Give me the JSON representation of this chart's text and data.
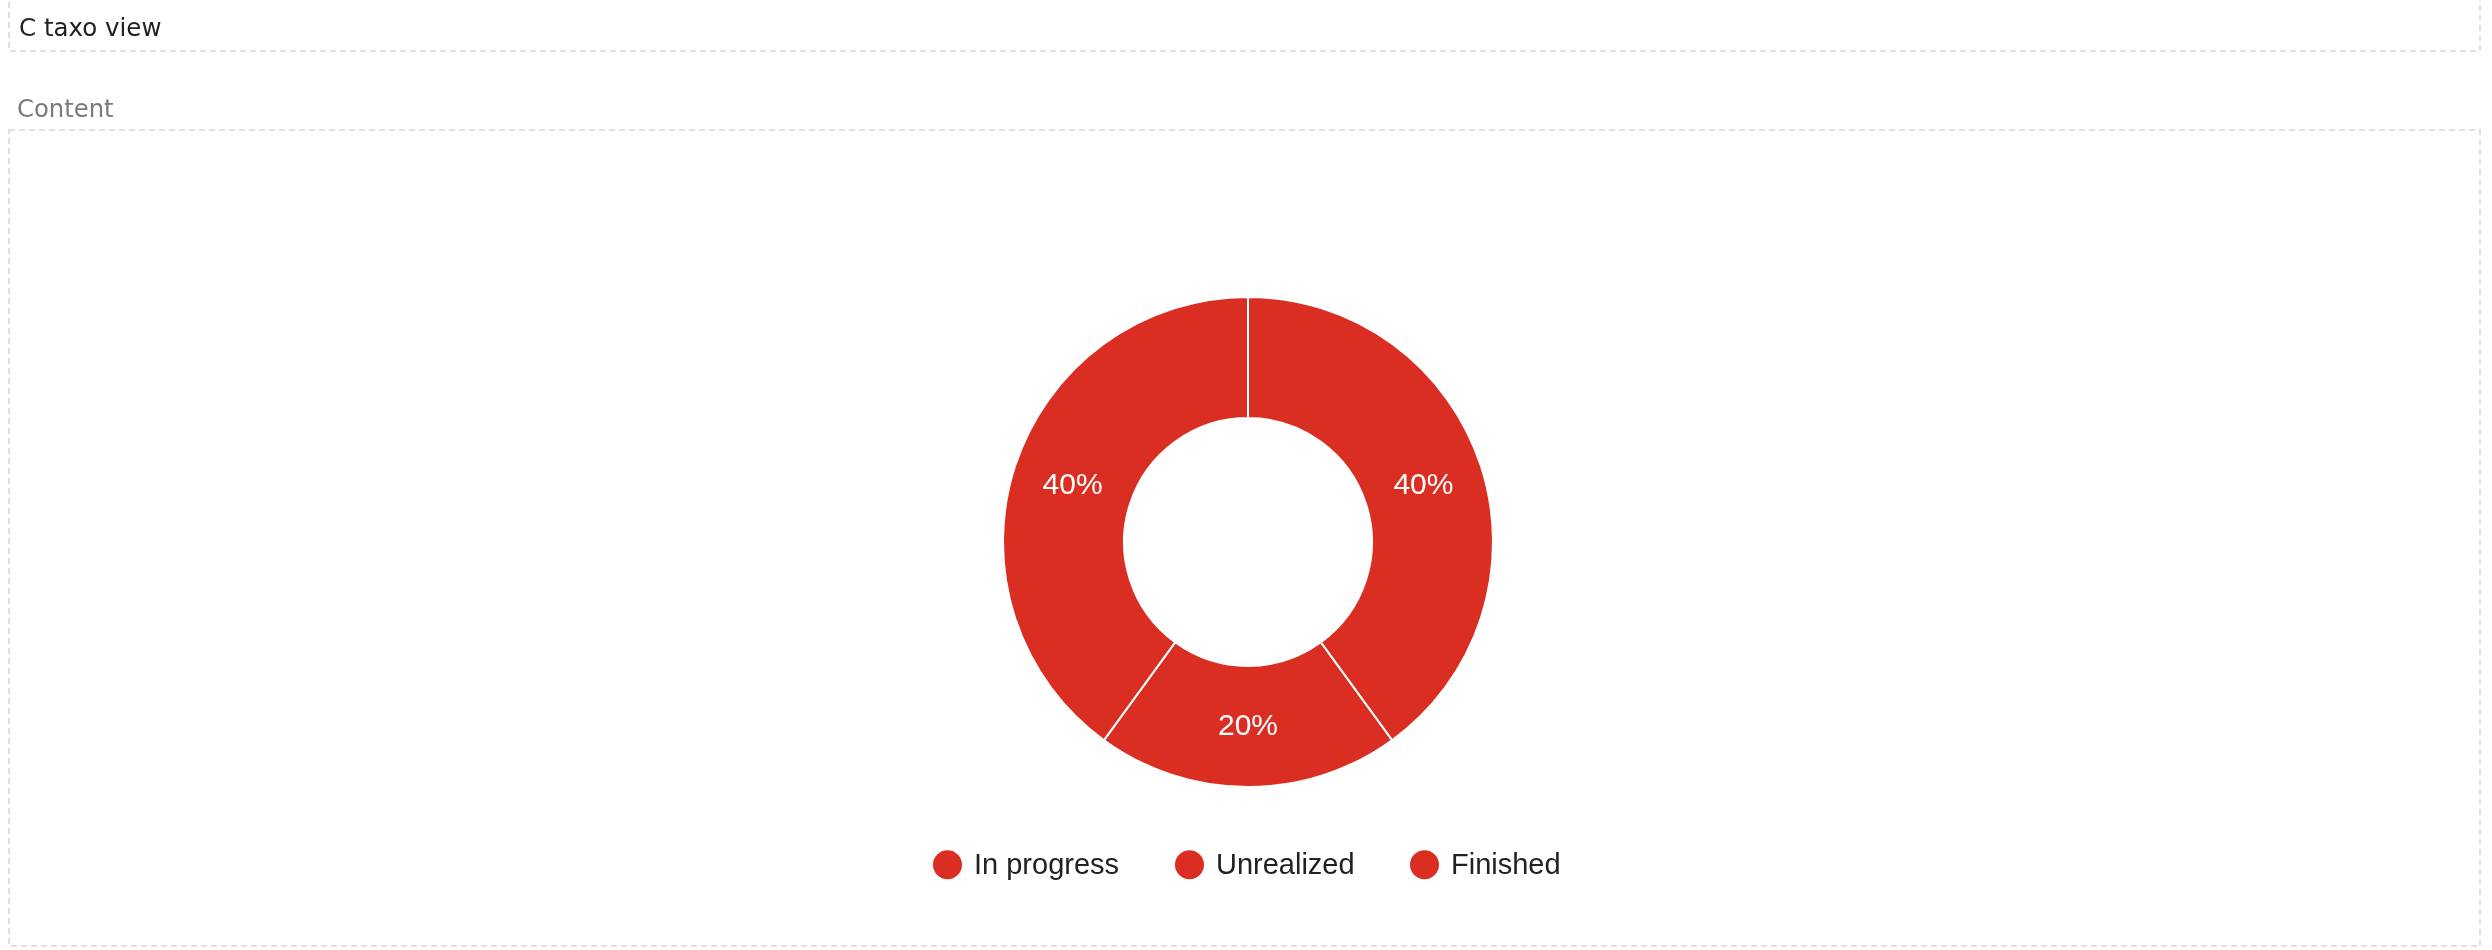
{
  "chart_data": {
    "type": "donut",
    "title": "C taxo view",
    "subtitle": "Content",
    "categories": [
      "In progress",
      "Unrealized",
      "Finished"
    ],
    "values": [
      40,
      20,
      40
    ],
    "colors": [
      "#db2e22",
      "#db2e22",
      "#db2e22"
    ],
    "value_labels": [
      "40%",
      "20%",
      "40%"
    ],
    "legend": "bottom"
  }
}
